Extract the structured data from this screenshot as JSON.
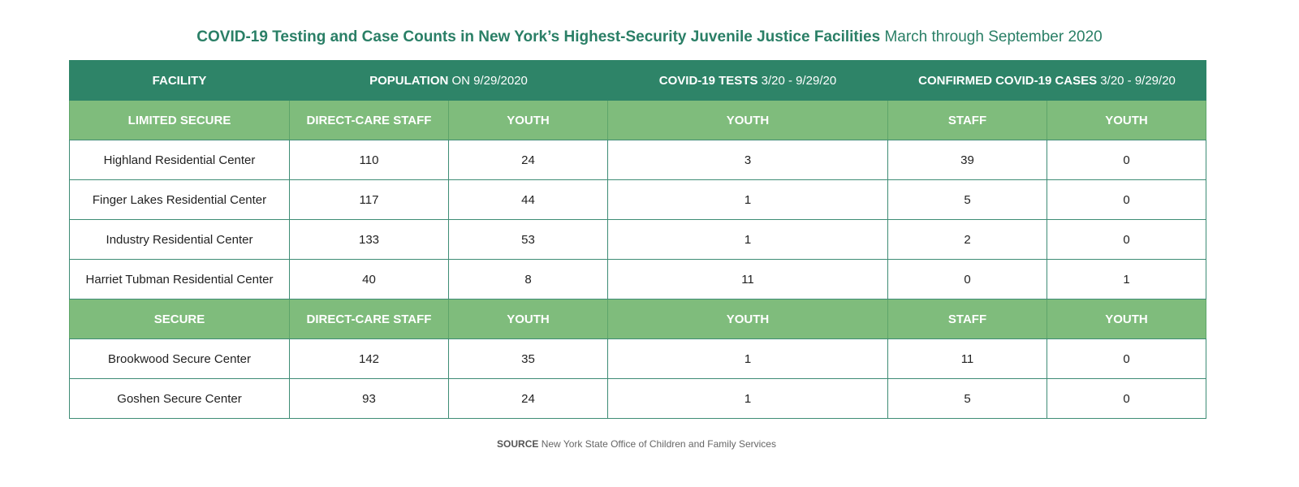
{
  "chart_data": {
    "type": "table",
    "title": "COVID-19 Testing and Case Counts in New York’s Highest-Security Juvenile Justice Facilities",
    "subtitle": "March through September 2020",
    "header": {
      "facility": "FACILITY",
      "population": "POPULATION",
      "population_suffix": " ON 9/29/2020",
      "tests": "COVID-19 TESTS",
      "tests_suffix": " 3/20 - 9/29/20",
      "cases": "CONFIRMED COVID-19 CASES",
      "cases_suffix": " 3/20 - 9/29/20"
    },
    "groups": [
      {
        "subheader": [
          "LIMITED SECURE",
          "DIRECT-CARE STAFF",
          "YOUTH",
          "YOUTH",
          "STAFF",
          "YOUTH"
        ],
        "rows": [
          {
            "facility": "Highland Residential Center",
            "staff_pop": "110",
            "youth_pop": "24",
            "youth_tests": "3",
            "staff_cases": "39",
            "youth_cases": "0"
          },
          {
            "facility": "Finger Lakes Residential Center",
            "staff_pop": "117",
            "youth_pop": "44",
            "youth_tests": "1",
            "staff_cases": "5",
            "youth_cases": "0"
          },
          {
            "facility": "Industry Residential Center",
            "staff_pop": "133",
            "youth_pop": "53",
            "youth_tests": "1",
            "staff_cases": "2",
            "youth_cases": "0"
          },
          {
            "facility": "Harriet Tubman Residential Center",
            "staff_pop": "40",
            "youth_pop": "8",
            "youth_tests": "11",
            "staff_cases": "0",
            "youth_cases": "1"
          }
        ]
      },
      {
        "subheader": [
          "SECURE",
          "DIRECT-CARE STAFF",
          "YOUTH",
          "YOUTH",
          "STAFF",
          "YOUTH"
        ],
        "rows": [
          {
            "facility": "Brookwood Secure Center",
            "staff_pop": "142",
            "youth_pop": "35",
            "youth_tests": "1",
            "staff_cases": "11",
            "youth_cases": "0"
          },
          {
            "facility": "Goshen Secure Center",
            "staff_pop": "93",
            "youth_pop": "24",
            "youth_tests": "1",
            "staff_cases": "5",
            "youth_cases": "0"
          }
        ]
      }
    ]
  },
  "source": {
    "label": "SOURCE",
    "text": " New York State Office of Children and Family Services"
  },
  "colors": {
    "title": "#2a7f66",
    "header_bg": "#2e8468",
    "subheader_bg": "#7fbc7c",
    "border": "#3e8c75"
  }
}
